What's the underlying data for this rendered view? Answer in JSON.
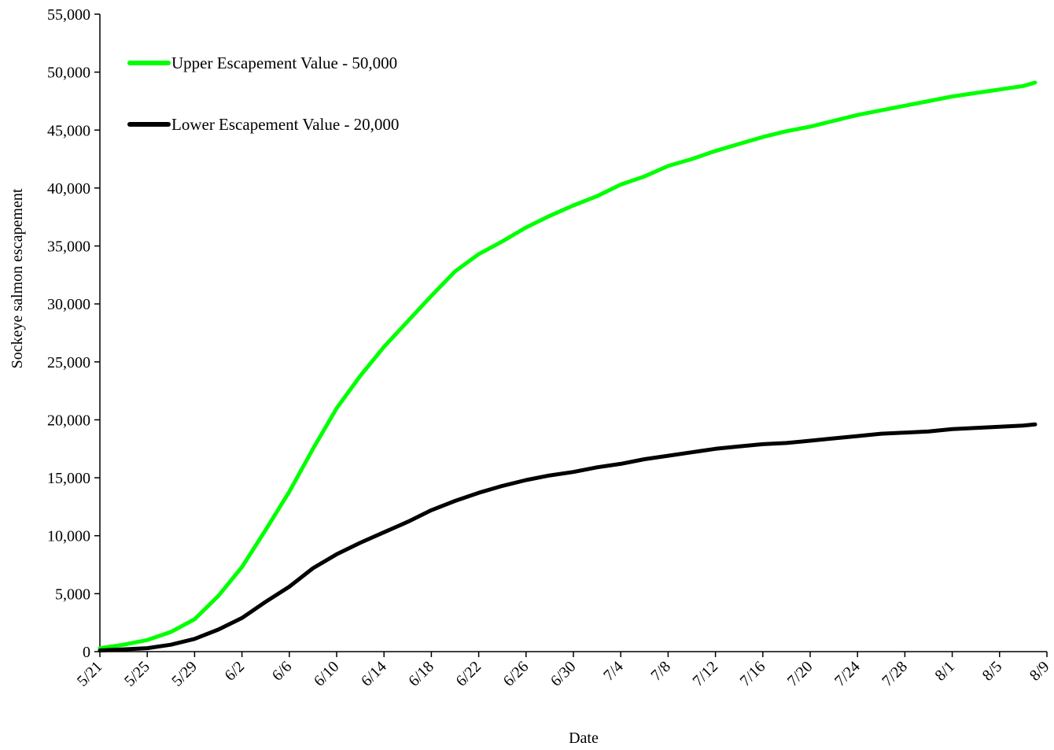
{
  "chart_data": {
    "type": "line",
    "title": "",
    "xlabel": "Date",
    "ylabel": "Sockeye salmon escapement",
    "ylim": [
      0,
      55000
    ],
    "yticks": [
      0,
      5000,
      10000,
      15000,
      20000,
      25000,
      30000,
      35000,
      40000,
      45000,
      50000,
      55000
    ],
    "ytick_labels": [
      "0",
      "5,000",
      "10,000",
      "15,000",
      "20,000",
      "25,000",
      "30,000",
      "35,000",
      "40,000",
      "45,000",
      "50,000",
      "55,000"
    ],
    "xlim": [
      "5/21",
      "8/9"
    ],
    "xtick_labels": [
      "5/21",
      "5/25",
      "5/29",
      "6/2",
      "6/6",
      "6/10",
      "6/14",
      "6/18",
      "6/22",
      "6/26",
      "6/30",
      "7/4",
      "7/8",
      "7/12",
      "7/16",
      "7/20",
      "7/24",
      "7/28",
      "8/1",
      "8/5",
      "8/9"
    ],
    "grid": false,
    "legend_position": "top-left",
    "x": [
      "5/21",
      "5/23",
      "5/25",
      "5/27",
      "5/29",
      "5/31",
      "6/2",
      "6/4",
      "6/6",
      "6/8",
      "6/10",
      "6/12",
      "6/14",
      "6/16",
      "6/18",
      "6/20",
      "6/22",
      "6/24",
      "6/26",
      "6/28",
      "6/30",
      "7/2",
      "7/4",
      "7/6",
      "7/8",
      "7/10",
      "7/12",
      "7/14",
      "7/16",
      "7/18",
      "7/20",
      "7/22",
      "7/24",
      "7/26",
      "7/28",
      "7/30",
      "8/1",
      "8/3",
      "8/5",
      "8/7",
      "8/8"
    ],
    "series": [
      {
        "name": "Upper Escapement Value - 50,000",
        "color": "#00ff00",
        "values": [
          300,
          600,
          1000,
          1700,
          2800,
          4800,
          7300,
          10500,
          13800,
          17500,
          21000,
          23800,
          26300,
          28500,
          30700,
          32800,
          34300,
          35400,
          36600,
          37600,
          38500,
          39300,
          40300,
          41000,
          41900,
          42500,
          43200,
          43800,
          44400,
          44900,
          45300,
          45800,
          46300,
          46700,
          47100,
          47500,
          47900,
          48200,
          48500,
          48800,
          49100
        ]
      },
      {
        "name": "Lower Escapement Value - 20,000",
        "color": "#000000",
        "values": [
          100,
          200,
          300,
          600,
          1100,
          1900,
          2900,
          4300,
          5600,
          7200,
          8400,
          9400,
          10300,
          11200,
          12200,
          13000,
          13700,
          14300,
          14800,
          15200,
          15500,
          15900,
          16200,
          16600,
          16900,
          17200,
          17500,
          17700,
          17900,
          18000,
          18200,
          18400,
          18600,
          18800,
          18900,
          19000,
          19200,
          19300,
          19400,
          19500,
          19600
        ]
      }
    ]
  }
}
